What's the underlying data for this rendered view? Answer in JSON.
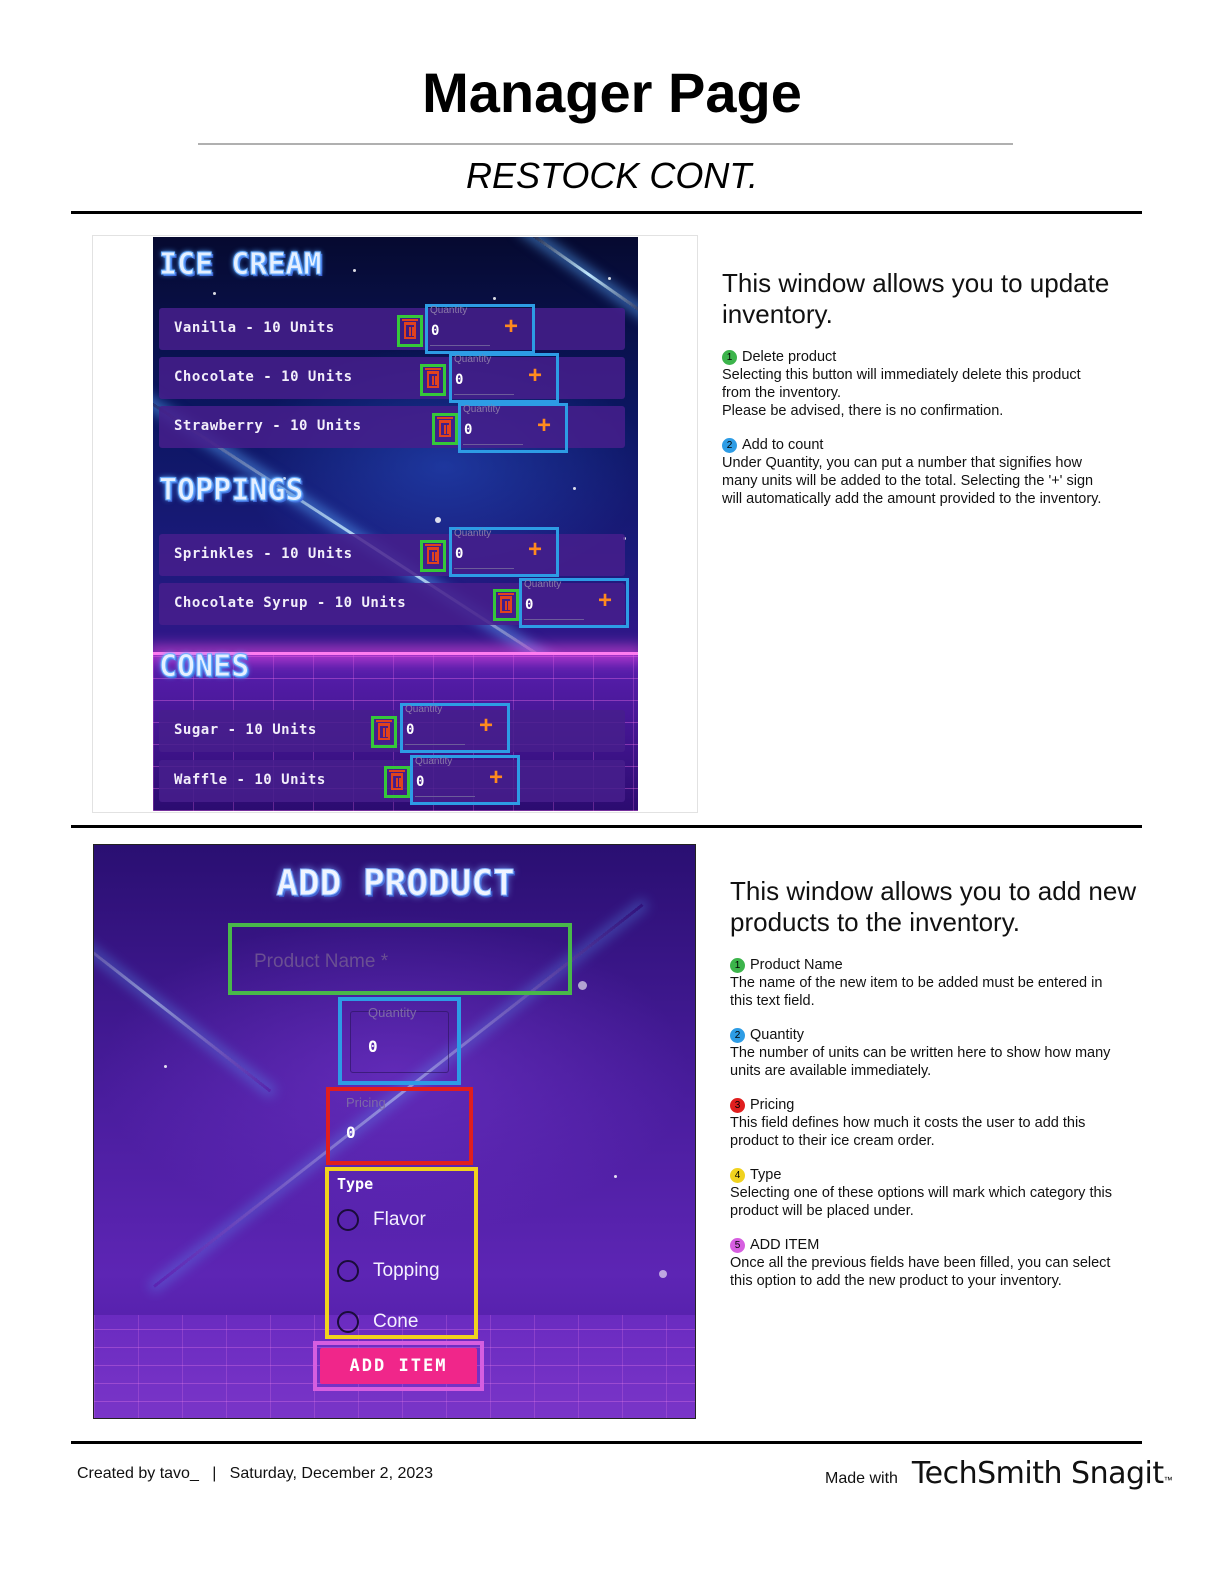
{
  "page": {
    "title": "Manager Page",
    "subtitle": "RESTOCK CONT."
  },
  "restock": {
    "sections": [
      {
        "heading": "ICE CREAM",
        "rows": [
          {
            "label": "Vanilla - 10 Units",
            "quantity_label": "Quantity",
            "quantity": "0",
            "plus": "+"
          },
          {
            "label": "Chocolate - 10 Units",
            "quantity_label": "Quantity",
            "quantity": "0",
            "plus": "+"
          },
          {
            "label": "Strawberry - 10 Units",
            "quantity_label": "Quantity",
            "quantity": "0",
            "plus": "+"
          }
        ]
      },
      {
        "heading": "TOPPINGS",
        "rows": [
          {
            "label": "Sprinkles - 10 Units",
            "quantity_label": "Quantity",
            "quantity": "0",
            "plus": "+"
          },
          {
            "label": "Chocolate Syrup - 10 Units",
            "quantity_label": "Quantity",
            "quantity": "0",
            "plus": "+"
          }
        ]
      },
      {
        "heading": "CONES",
        "rows": [
          {
            "label": "Sugar - 10 Units",
            "quantity_label": "Quantity",
            "quantity": "0",
            "plus": "+"
          },
          {
            "label": "Waffle - 10 Units",
            "quantity_label": "Quantity",
            "quantity": "0",
            "plus": "+"
          }
        ]
      }
    ],
    "description": {
      "heading": "This window allows you to update inventory.",
      "items": [
        {
          "num": "1",
          "color": "#3cb44b",
          "title": "Delete product",
          "text": "Selecting this button will immediately delete this product\nfrom the inventory.\nPlease be advised, there is no confirmation."
        },
        {
          "num": "2",
          "color": "#2d9ce5",
          "title": "Add to count",
          "text": "Under Quantity, you can put a number that signifies how\nmany units will be added to the total. Selecting the '+' sign\nwill automatically add the amount provided to the inventory."
        }
      ]
    }
  },
  "add_product": {
    "title": "ADD PRODUCT",
    "product_name_placeholder": "Product Name *",
    "quantity_label": "Quantity",
    "quantity_value": "0",
    "pricing_label": "Pricing",
    "pricing_value": "0",
    "type_label": "Type",
    "type_options": [
      "Flavor",
      "Topping",
      "Cone"
    ],
    "add_item_label": "ADD ITEM",
    "description": {
      "heading": "This window allows you to add new products to the inventory.",
      "items": [
        {
          "num": "1",
          "color": "#3cb44b",
          "title": "Product Name",
          "text": "The name of the new item to be added must be entered in\nthis text field."
        },
        {
          "num": "2",
          "color": "#2d9ce5",
          "title": "Quantity",
          "text": "The number of units can be written here to show how many\nunits are available immediately."
        },
        {
          "num": "3",
          "color": "#e01e1e",
          "title": "Pricing",
          "text": "This field defines how much it costs the user to add this\nproduct to their ice cream order."
        },
        {
          "num": "4",
          "color": "#f0d21e",
          "title": "Type",
          "text": "Selecting one of these options will mark which category this\nproduct will be placed under."
        },
        {
          "num": "5",
          "color": "#d65ee0",
          "title": "ADD ITEM",
          "text": "Once all the previous fields have been filled, you can select\nthis option to add the new product to your inventory."
        }
      ]
    }
  },
  "footer": {
    "created": "Created by tavo_   |   Saturday, December 2, 2023",
    "made_with": "Made with",
    "brand": "TechSmith Snagit",
    "tm": "™"
  }
}
